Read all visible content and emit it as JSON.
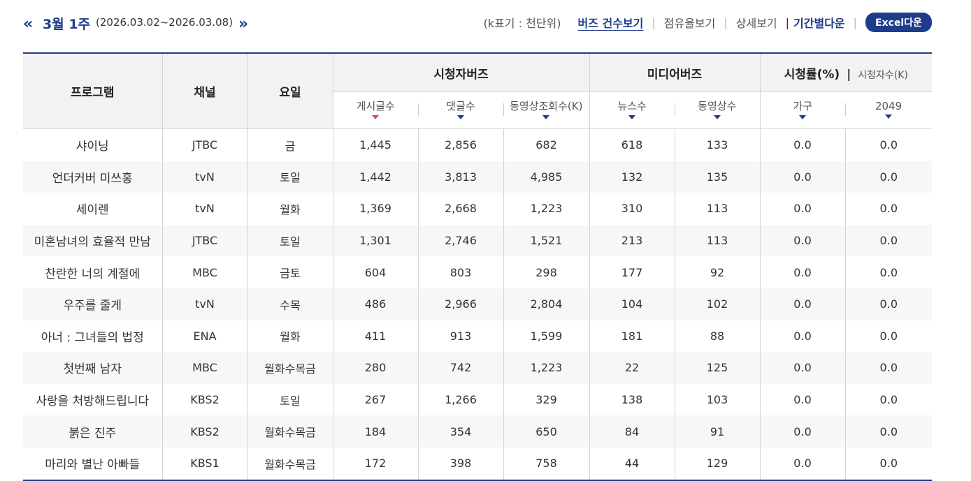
{
  "nav": {
    "prev_glyph": "«",
    "next_glyph": "»",
    "week_title": "3월 1주",
    "week_range": "(2026.03.02~2026.03.08)"
  },
  "menu": {
    "unit_note": "(k표기 : 천단위)",
    "buzz_count": "버즈 건수보기",
    "share_view": "점유율보기",
    "detail_view": "상세보기",
    "period_download": "기간별다운",
    "excel_download": "Excel다운",
    "sep": "|"
  },
  "table": {
    "headers": {
      "program": "프로그램",
      "channel": "채널",
      "day": "요일",
      "viewer_buzz": "시청자버즈",
      "media_buzz": "미디어버즈",
      "rating": "시청률(%)",
      "viewers": "시청자수(K)",
      "pipe": "|"
    },
    "subheaders": {
      "posts": "게시글수",
      "comments": "댓글수",
      "video_views": "동영상조회수(K)",
      "news": "뉴스수",
      "videos": "동영상수",
      "household": "가구",
      "age2049": "2049"
    },
    "rows": [
      {
        "program": "샤이닝",
        "channel": "JTBC",
        "day": "금",
        "posts": "1,445",
        "comments": "2,856",
        "video_views": "682",
        "news": "618",
        "videos": "133",
        "household": "0.0",
        "age2049": "0.0"
      },
      {
        "program": "언더커버 미쓰홍",
        "channel": "tvN",
        "day": "토일",
        "posts": "1,442",
        "comments": "3,813",
        "video_views": "4,985",
        "news": "132",
        "videos": "135",
        "household": "0.0",
        "age2049": "0.0"
      },
      {
        "program": "세이렌",
        "channel": "tvN",
        "day": "월화",
        "posts": "1,369",
        "comments": "2,668",
        "video_views": "1,223",
        "news": "310",
        "videos": "113",
        "household": "0.0",
        "age2049": "0.0"
      },
      {
        "program": "미혼남녀의 효율적 만남",
        "channel": "JTBC",
        "day": "토일",
        "posts": "1,301",
        "comments": "2,746",
        "video_views": "1,521",
        "news": "213",
        "videos": "113",
        "household": "0.0",
        "age2049": "0.0"
      },
      {
        "program": "찬란한 너의 계절에",
        "channel": "MBC",
        "day": "금토",
        "posts": "604",
        "comments": "803",
        "video_views": "298",
        "news": "177",
        "videos": "92",
        "household": "0.0",
        "age2049": "0.0"
      },
      {
        "program": "우주를 줄게",
        "channel": "tvN",
        "day": "수목",
        "posts": "486",
        "comments": "2,966",
        "video_views": "2,804",
        "news": "104",
        "videos": "102",
        "household": "0.0",
        "age2049": "0.0"
      },
      {
        "program": "아너 : 그녀들의 법정",
        "channel": "ENA",
        "day": "월화",
        "posts": "411",
        "comments": "913",
        "video_views": "1,599",
        "news": "181",
        "videos": "88",
        "household": "0.0",
        "age2049": "0.0"
      },
      {
        "program": "첫번째 남자",
        "channel": "MBC",
        "day": "월화수목금",
        "posts": "280",
        "comments": "742",
        "video_views": "1,223",
        "news": "22",
        "videos": "125",
        "household": "0.0",
        "age2049": "0.0"
      },
      {
        "program": "사랑을 처방해드립니다",
        "channel": "KBS2",
        "day": "토일",
        "posts": "267",
        "comments": "1,266",
        "video_views": "329",
        "news": "138",
        "videos": "103",
        "household": "0.0",
        "age2049": "0.0"
      },
      {
        "program": "붉은 진주",
        "channel": "KBS2",
        "day": "월화수목금",
        "posts": "184",
        "comments": "354",
        "video_views": "650",
        "news": "84",
        "videos": "91",
        "household": "0.0",
        "age2049": "0.0"
      },
      {
        "program": "마리와 별난 아빠들",
        "channel": "KBS1",
        "day": "월화수목금",
        "posts": "172",
        "comments": "398",
        "video_views": "758",
        "news": "44",
        "videos": "129",
        "household": "0.0",
        "age2049": "0.0"
      }
    ]
  }
}
